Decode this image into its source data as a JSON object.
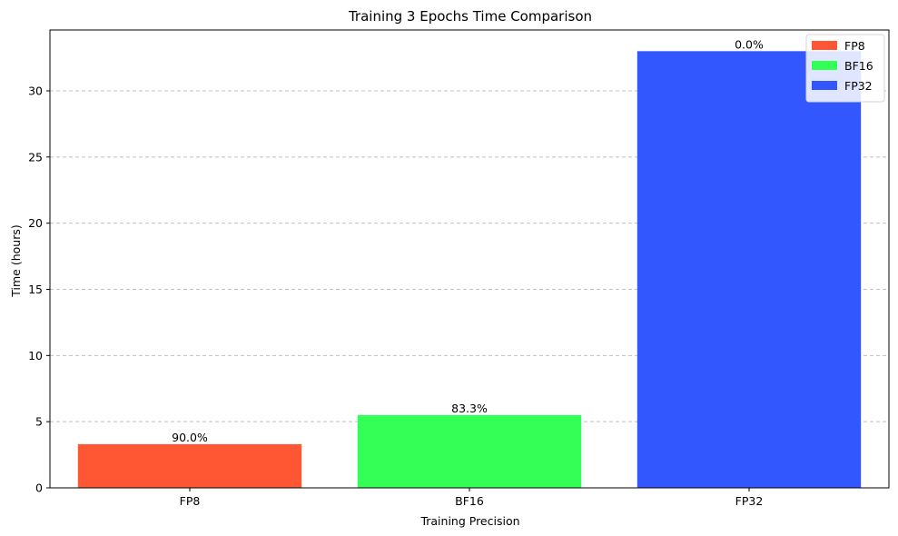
{
  "chart_data": {
    "type": "bar",
    "title": "Training 3 Epochs Time Comparison",
    "xlabel": "Training Precision",
    "ylabel": "Time (hours)",
    "categories": [
      "FP8",
      "BF16",
      "FP32"
    ],
    "values": [
      3.3,
      5.5,
      33.0
    ],
    "data_labels": [
      "90.0%",
      "83.3%",
      "0.0%"
    ],
    "colors": [
      "#ff5733",
      "#33ff57",
      "#3357ff"
    ],
    "ylim": [
      0,
      34.6
    ],
    "yticks": [
      0,
      5,
      10,
      15,
      20,
      25,
      30
    ],
    "grid": "y-dashed",
    "legend": {
      "placement": "top-right",
      "entries": [
        "FP8",
        "BF16",
        "FP32"
      ]
    }
  }
}
